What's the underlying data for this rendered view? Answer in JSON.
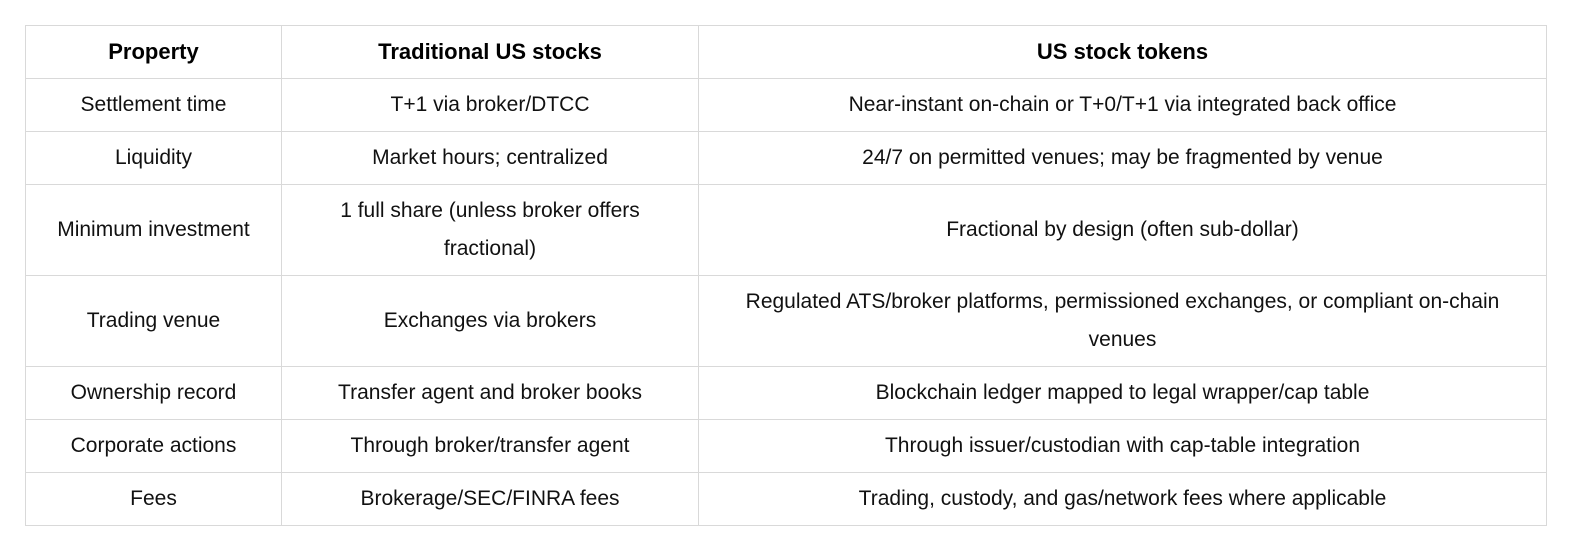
{
  "chart_data": {
    "type": "table",
    "columns": [
      "Property",
      "Traditional US stocks",
      "US stock tokens"
    ],
    "rows": [
      [
        "Settlement time",
        "T+1 via broker/DTCC",
        "Near-instant on-chain or T+0/T+1 via integrated back office"
      ],
      [
        "Liquidity",
        "Market hours; centralized",
        "24/7 on permitted venues; may be fragmented by venue"
      ],
      [
        "Minimum investment",
        "1 full share (unless broker offers fractional)",
        "Fractional by design (often sub-dollar)"
      ],
      [
        "Trading venue",
        "Exchanges via brokers",
        "Regulated ATS/broker platforms, permissioned exchanges, or compliant on-chain venues"
      ],
      [
        "Ownership record",
        "Transfer agent and broker books",
        "Blockchain ledger mapped to legal wrapper/cap table"
      ],
      [
        "Corporate actions",
        "Through broker/transfer agent",
        "Through issuer/custodian with cap-table integration"
      ],
      [
        "Fees",
        "Brokerage/SEC/FINRA fees",
        "Trading, custody, and gas/network fees where applicable"
      ]
    ],
    "colors": {
      "border": "#d9d9d9",
      "text": "#111111",
      "background": "#ffffff"
    }
  }
}
